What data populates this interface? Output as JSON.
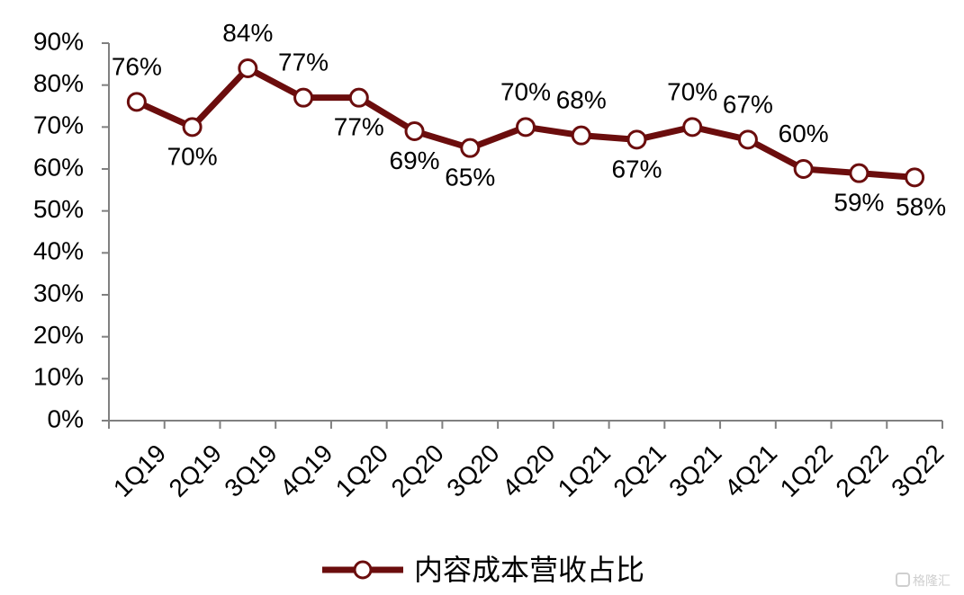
{
  "chart_data": {
    "type": "line",
    "categories": [
      "1Q19",
      "2Q19",
      "3Q19",
      "4Q19",
      "1Q20",
      "2Q20",
      "3Q20",
      "4Q20",
      "1Q21",
      "2Q21",
      "3Q21",
      "4Q21",
      "1Q22",
      "2Q22",
      "3Q22"
    ],
    "series": [
      {
        "name": "内容成本营收占比",
        "values": [
          76,
          70,
          84,
          77,
          77,
          69,
          65,
          70,
          68,
          67,
          70,
          67,
          60,
          59,
          58
        ],
        "labels": [
          "76%",
          "70%",
          "84%",
          "77%",
          "77%",
          "69%",
          "65%",
          "70%",
          "68%",
          "67%",
          "70%",
          "67%",
          "60%",
          "59%",
          "58%"
        ],
        "color": "#6b0d0d",
        "marker_fill": "#ffffff"
      }
    ],
    "y_ticks": [
      "0%",
      "10%",
      "20%",
      "30%",
      "40%",
      "50%",
      "60%",
      "70%",
      "80%",
      "90%"
    ],
    "ylim": [
      0,
      90
    ],
    "title": "",
    "xlabel": "",
    "ylabel": "",
    "grid": false,
    "legend_position": "bottom-center"
  },
  "watermark": {
    "text": "格隆汇",
    "icon": "gelonghui-logo-icon"
  }
}
